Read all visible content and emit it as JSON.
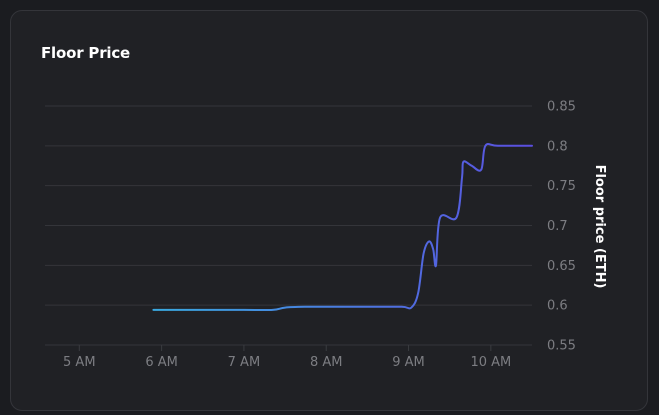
{
  "card": {
    "title": "Floor Price"
  },
  "chart_data": {
    "type": "line",
    "title": "Floor Price",
    "ylabel": "Floor price (ETH)",
    "xlabel": "",
    "y_axis_position": "right",
    "grid": true,
    "ylim": [
      0.55,
      0.85
    ],
    "yticks": [
      0.55,
      0.6,
      0.65,
      0.7,
      0.75,
      0.8,
      0.85
    ],
    "ytick_labels": [
      "0.55",
      "0.6",
      "0.65",
      "0.7",
      "0.75",
      "0.8",
      "0.85"
    ],
    "xlim": [
      "04:35",
      "10:30"
    ],
    "xticks": [
      "05:00",
      "06:00",
      "07:00",
      "08:00",
      "09:00",
      "10:00"
    ],
    "xtick_labels": [
      "5 AM",
      "6 AM",
      "7 AM",
      "8 AM",
      "9 AM",
      "10 AM"
    ],
    "series": [
      {
        "color": "#3aa8e0",
        "color_end": "#5b4ee0",
        "points": [
          {
            "x": "05:54",
            "y": 0.594
          },
          {
            "x": "06:30",
            "y": 0.594
          },
          {
            "x": "07:00",
            "y": 0.594
          },
          {
            "x": "07:21",
            "y": 0.594
          },
          {
            "x": "07:30",
            "y": 0.597
          },
          {
            "x": "07:45",
            "y": 0.598
          },
          {
            "x": "08:00",
            "y": 0.598
          },
          {
            "x": "08:30",
            "y": 0.598
          },
          {
            "x": "08:55",
            "y": 0.598
          },
          {
            "x": "09:02",
            "y": 0.597
          },
          {
            "x": "09:07",
            "y": 0.615
          },
          {
            "x": "09:11",
            "y": 0.665
          },
          {
            "x": "09:15",
            "y": 0.68
          },
          {
            "x": "09:18",
            "y": 0.67
          },
          {
            "x": "09:20",
            "y": 0.65
          },
          {
            "x": "09:23",
            "y": 0.71
          },
          {
            "x": "09:35",
            "y": 0.71
          },
          {
            "x": "09:39",
            "y": 0.76
          },
          {
            "x": "09:40",
            "y": 0.78
          },
          {
            "x": "09:46",
            "y": 0.775
          },
          {
            "x": "09:53",
            "y": 0.77
          },
          {
            "x": "09:56",
            "y": 0.8
          },
          {
            "x": "10:05",
            "y": 0.8
          },
          {
            "x": "10:30",
            "y": 0.8
          }
        ]
      }
    ]
  }
}
